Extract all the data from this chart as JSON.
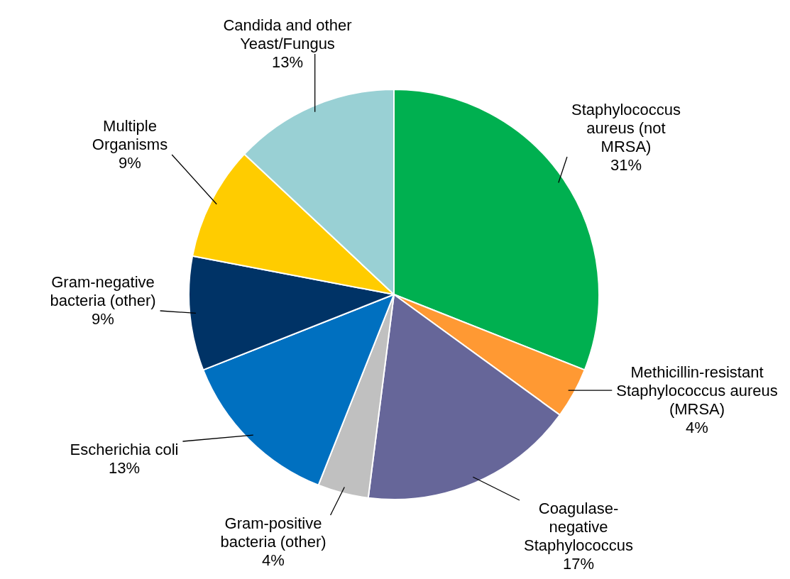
{
  "chart_data": {
    "type": "pie",
    "categories": [
      "Staphylococcus aureus (not MRSA)",
      "Methicillin-resistant Staphylococcus aureus (MRSA)",
      "Coagulase-negative Staphylococcus",
      "Gram-positive bacteria (other)",
      "Escherichia coli",
      "Gram-negative bacteria (other)",
      "Multiple Organisms",
      "Candida and other Yeast/Fungus"
    ],
    "values": [
      31,
      4,
      17,
      4,
      13,
      9,
      9,
      13
    ],
    "value_labels": [
      "31%",
      "4%",
      "17%",
      "4%",
      "13%",
      "9%",
      "9%",
      "13%"
    ],
    "colors": [
      "#00b050",
      "#ff9933",
      "#666699",
      "#c0c0c0",
      "#0070c0",
      "#003366",
      "#ffcc00",
      "#99d0d4"
    ],
    "legend": false
  }
}
